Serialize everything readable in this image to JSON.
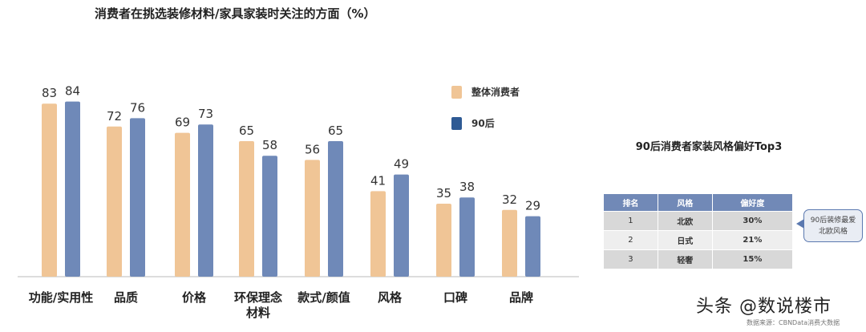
{
  "chart_data": {
    "type": "bar",
    "title": "消费者在挑选装修材料/家具家装时关注的方面（%）",
    "categories": [
      "功能/实用性",
      "品质",
      "价格",
      "环保理念\n材料",
      "款式/颜值",
      "风格",
      "口碑",
      "品牌"
    ],
    "series": [
      {
        "name": "整体消费者",
        "color": "#f0c596",
        "values": [
          83,
          72,
          69,
          65,
          56,
          41,
          35,
          32
        ]
      },
      {
        "name": "90后",
        "color": "#6f89b8",
        "values": [
          84,
          76,
          73,
          58,
          65,
          49,
          38,
          29
        ]
      }
    ],
    "ylim": [
      0,
      100
    ],
    "grid": false,
    "legend": "top-right",
    "data_labels": true
  },
  "legend": [
    {
      "label": "整体消费者",
      "color": "#f0c596"
    },
    {
      "label": "90后",
      "color": "#2e5a94"
    }
  ],
  "side_table": {
    "title": "90后消费者家装风格偏好Top3",
    "headers": [
      "排名",
      "风格",
      "偏好度"
    ],
    "rows": [
      [
        "1",
        "北欧",
        "30%"
      ],
      [
        "2",
        "日式",
        "21%"
      ],
      [
        "3",
        "轻奢",
        "15%"
      ]
    ]
  },
  "callout": "90后装修最爱北欧风格",
  "watermark": "头条 @数说楼市",
  "source": "数据来源：CBNData消费大数据"
}
